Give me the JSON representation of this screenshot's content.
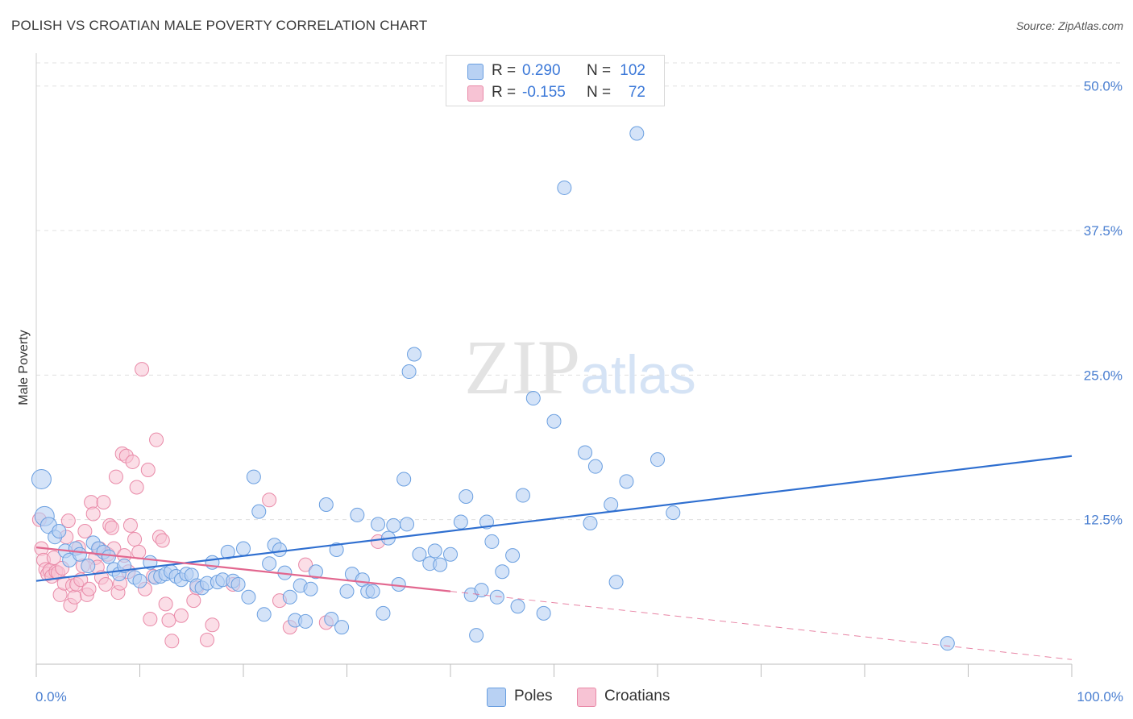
{
  "title": "POLISH VS CROATIAN MALE POVERTY CORRELATION CHART",
  "source": "Source: ZipAtlas.com",
  "legend": {
    "rows": [
      {
        "r_label": "R =",
        "r_value": "0.290",
        "n_label": "N =",
        "n_value": "102"
      },
      {
        "r_label": "R =",
        "r_value": "-0.155",
        "n_label": "N =",
        "n_value": "72"
      }
    ]
  },
  "bottom_legend": [
    "Poles",
    "Croatians"
  ],
  "watermark": "ZIPatlas",
  "colors": {
    "poles_fill": "#b8d1f3",
    "poles_stroke": "#6a9fe0",
    "poles_line": "#2f6fd0",
    "croatians_fill": "#f7c3d4",
    "croatians_stroke": "#e98aa8",
    "croatians_line": "#e2678f",
    "tick_text": "#4a7fd1",
    "grid": "#e0e0e0"
  },
  "chart_data": {
    "type": "scatter",
    "title": "POLISH VS CROATIAN MALE POVERTY CORRELATION CHART",
    "xlabel": "",
    "ylabel": "Male Poverty",
    "xlim": [
      0,
      100
    ],
    "ylim": [
      0,
      52
    ],
    "x_tick_labels": [
      "0.0%",
      "100.0%"
    ],
    "y_ticks": [
      12.5,
      25.0,
      37.5,
      50.0
    ],
    "y_tick_labels": [
      "12.5%",
      "25.0%",
      "37.5%",
      "50.0%"
    ],
    "grid": true,
    "legend_position": "top-center",
    "series": [
      {
        "name": "Poles",
        "r": 0.29,
        "n": 102,
        "trend": {
          "x": [
            0,
            100
          ],
          "y": [
            7.2,
            18.0
          ]
        },
        "points": [
          [
            0.5,
            16.0
          ],
          [
            0.8,
            12.8
          ],
          [
            1.2,
            12.0
          ],
          [
            1.8,
            11.0
          ],
          [
            2.2,
            11.5
          ],
          [
            2.8,
            9.8
          ],
          [
            3.2,
            9.0
          ],
          [
            3.8,
            10.0
          ],
          [
            4.2,
            9.5
          ],
          [
            5,
            8.5
          ],
          [
            5.5,
            10.5
          ],
          [
            6,
            10
          ],
          [
            6.5,
            9.7
          ],
          [
            7,
            9.3
          ],
          [
            7.5,
            8.2
          ],
          [
            8,
            7.8
          ],
          [
            8.5,
            8.5
          ],
          [
            9.5,
            7.5
          ],
          [
            10,
            7.2
          ],
          [
            11,
            8.8
          ],
          [
            11.5,
            7.5
          ],
          [
            12,
            7.6
          ],
          [
            12.5,
            7.8
          ],
          [
            13,
            8.0
          ],
          [
            13.5,
            7.6
          ],
          [
            14,
            7.3
          ],
          [
            14.5,
            7.8
          ],
          [
            15,
            7.7
          ],
          [
            15.5,
            6.8
          ],
          [
            16,
            6.6
          ],
          [
            16.5,
            7.0
          ],
          [
            17,
            8.8
          ],
          [
            17.5,
            7.1
          ],
          [
            18,
            7.3
          ],
          [
            18.5,
            9.7
          ],
          [
            19,
            7.2
          ],
          [
            19.5,
            6.9
          ],
          [
            20,
            10.0
          ],
          [
            20.5,
            5.8
          ],
          [
            21,
            16.2
          ],
          [
            21.5,
            13.2
          ],
          [
            22,
            4.3
          ],
          [
            22.5,
            8.7
          ],
          [
            23,
            10.3
          ],
          [
            23.5,
            9.9
          ],
          [
            24,
            7.9
          ],
          [
            24.5,
            5.8
          ],
          [
            25,
            3.8
          ],
          [
            25.5,
            6.8
          ],
          [
            26,
            3.7
          ],
          [
            26.5,
            6.5
          ],
          [
            27,
            8.0
          ],
          [
            28,
            13.8
          ],
          [
            28.5,
            3.9
          ],
          [
            29,
            9.9
          ],
          [
            29.5,
            3.2
          ],
          [
            30,
            6.3
          ],
          [
            30.5,
            7.8
          ],
          [
            31,
            12.9
          ],
          [
            31.5,
            7.3
          ],
          [
            32,
            6.3
          ],
          [
            32.5,
            6.3
          ],
          [
            33,
            12.1
          ],
          [
            33.5,
            4.4
          ],
          [
            34,
            10.9
          ],
          [
            34.5,
            12.0
          ],
          [
            35,
            6.9
          ],
          [
            35.5,
            16.0
          ],
          [
            35.8,
            12.1
          ],
          [
            36,
            25.3
          ],
          [
            36.5,
            26.8
          ],
          [
            37,
            9.5
          ],
          [
            38,
            8.7
          ],
          [
            38.5,
            9.8
          ],
          [
            39,
            8.6
          ],
          [
            40,
            9.5
          ],
          [
            41,
            12.3
          ],
          [
            41.5,
            14.5
          ],
          [
            42,
            6.0
          ],
          [
            42.5,
            2.5
          ],
          [
            43,
            6.4
          ],
          [
            43.5,
            12.3
          ],
          [
            44,
            10.6
          ],
          [
            44.5,
            5.8
          ],
          [
            45,
            8.0
          ],
          [
            46,
            9.4
          ],
          [
            46.5,
            5.0
          ],
          [
            47,
            14.6
          ],
          [
            48,
            23.0
          ],
          [
            49,
            4.4
          ],
          [
            50,
            21.0
          ],
          [
            51,
            41.2
          ],
          [
            53,
            18.3
          ],
          [
            53.5,
            12.2
          ],
          [
            54,
            17.1
          ],
          [
            55.5,
            13.8
          ],
          [
            56,
            7.1
          ],
          [
            57,
            15.8
          ],
          [
            58,
            45.9
          ],
          [
            60,
            17.7
          ],
          [
            61.5,
            13.1
          ],
          [
            88,
            1.8
          ]
        ]
      },
      {
        "name": "Croatians",
        "r": -0.155,
        "n": 72,
        "trend": {
          "x": [
            0,
            40
          ],
          "y": [
            10.1,
            6.3
          ]
        },
        "trend_extended": {
          "x": [
            40,
            100
          ],
          "y": [
            6.3,
            0.4
          ]
        },
        "points": [
          [
            0.3,
            12.5
          ],
          [
            0.5,
            10.0
          ],
          [
            0.7,
            9.0
          ],
          [
            0.9,
            8.2
          ],
          [
            1.1,
            7.8
          ],
          [
            1.3,
            8.1
          ],
          [
            1.5,
            7.6
          ],
          [
            1.7,
            9.2
          ],
          [
            1.9,
            8.0
          ],
          [
            2.1,
            7.9
          ],
          [
            2.3,
            6.0
          ],
          [
            2.5,
            8.3
          ],
          [
            2.7,
            7.0
          ],
          [
            2.9,
            11.0
          ],
          [
            3.1,
            12.4
          ],
          [
            3.3,
            5.1
          ],
          [
            3.5,
            6.8
          ],
          [
            3.7,
            5.8
          ],
          [
            3.9,
            6.9
          ],
          [
            4.1,
            10.1
          ],
          [
            4.3,
            7.3
          ],
          [
            4.5,
            8.5
          ],
          [
            4.7,
            11.5
          ],
          [
            4.9,
            6.0
          ],
          [
            5.1,
            6.5
          ],
          [
            5.3,
            14.0
          ],
          [
            5.5,
            13.0
          ],
          [
            5.7,
            9.2
          ],
          [
            5.9,
            8.4
          ],
          [
            6.1,
            10.0
          ],
          [
            6.3,
            7.5
          ],
          [
            6.5,
            14.0
          ],
          [
            6.7,
            6.9
          ],
          [
            6.9,
            9.5
          ],
          [
            7.1,
            12.0
          ],
          [
            7.3,
            11.8
          ],
          [
            7.5,
            10.0
          ],
          [
            7.7,
            16.2
          ],
          [
            7.9,
            6.2
          ],
          [
            8.1,
            7.0
          ],
          [
            8.3,
            18.2
          ],
          [
            8.5,
            9.4
          ],
          [
            8.7,
            18.0
          ],
          [
            8.9,
            8.0
          ],
          [
            9.1,
            12.0
          ],
          [
            9.3,
            17.5
          ],
          [
            9.5,
            10.8
          ],
          [
            9.7,
            15.3
          ],
          [
            9.9,
            9.7
          ],
          [
            10.2,
            25.5
          ],
          [
            10.5,
            6.5
          ],
          [
            10.8,
            16.8
          ],
          [
            11.0,
            3.9
          ],
          [
            11.3,
            7.6
          ],
          [
            11.6,
            19.4
          ],
          [
            11.9,
            11.0
          ],
          [
            12.2,
            10.7
          ],
          [
            12.5,
            5.2
          ],
          [
            12.8,
            3.8
          ],
          [
            13.1,
            2.0
          ],
          [
            14,
            4.2
          ],
          [
            15.2,
            5.5
          ],
          [
            15.5,
            6.6
          ],
          [
            16.5,
            2.1
          ],
          [
            17,
            3.4
          ],
          [
            19,
            6.9
          ],
          [
            22.5,
            14.2
          ],
          [
            23.5,
            5.5
          ],
          [
            24.5,
            3.2
          ],
          [
            26,
            8.6
          ],
          [
            28,
            3.6
          ],
          [
            33,
            10.6
          ]
        ]
      }
    ]
  }
}
